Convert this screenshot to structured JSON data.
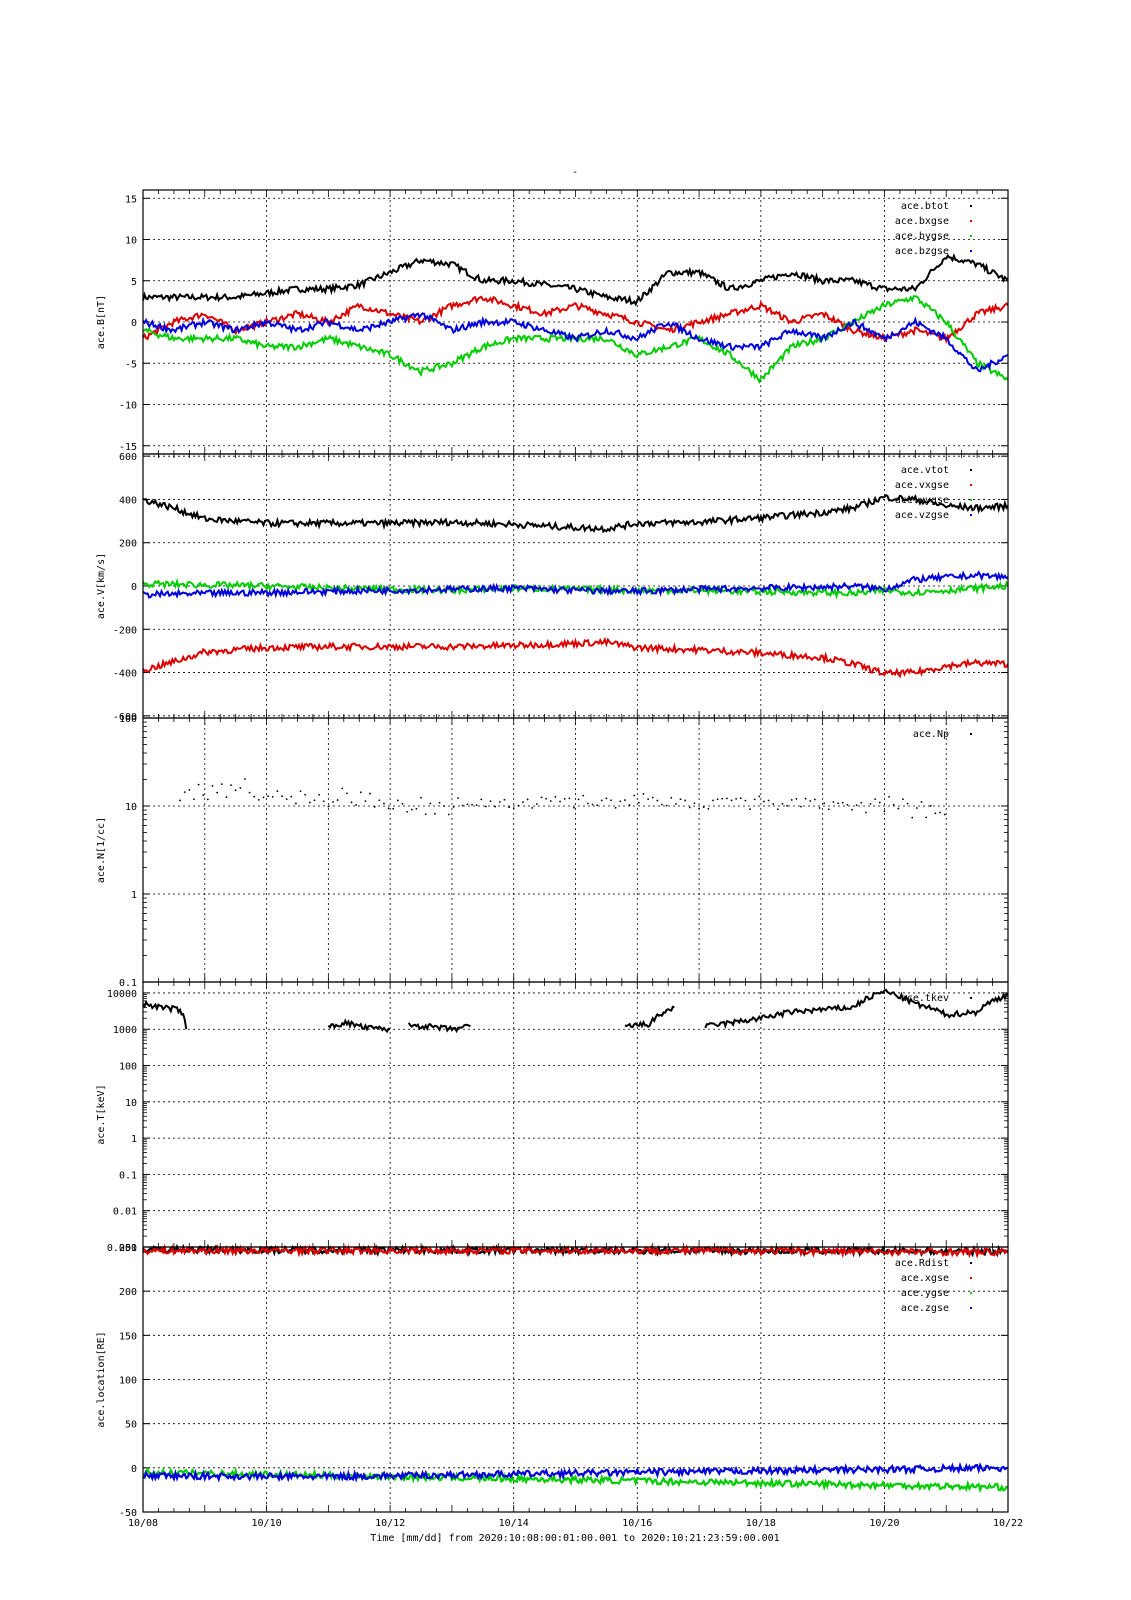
{
  "title": "-",
  "footer": {
    "time_label": "Time [mm/dd]  from 2020:10:08:00:01:00.001  to  2020:10:21:23:59:00.001"
  },
  "chart_data": [
    {
      "type": "line",
      "ylabel": "ace.B[nT]",
      "yscale": "linear",
      "ylim": [
        -16,
        16
      ],
      "yticks": [
        -15,
        -10,
        -5,
        0,
        5,
        10,
        15
      ],
      "xlim": [
        0,
        14
      ],
      "xtick_days": [
        0,
        2,
        4,
        6,
        8,
        10,
        12,
        14
      ],
      "xtick_labels": [
        "10/08",
        "10/10",
        "10/12",
        "10/14",
        "10/16",
        "10/18",
        "10/20",
        "10/22"
      ],
      "legend_position": "top-right",
      "series": [
        {
          "name": "ace.btot",
          "color": "#000000",
          "x": [
            0,
            0.5,
            1,
            1.5,
            2,
            2.5,
            3,
            3.5,
            4,
            4.5,
            5,
            5.5,
            6,
            6.5,
            7,
            7.5,
            8,
            8.5,
            9,
            9.5,
            10,
            10.5,
            11,
            11.5,
            12,
            12.5,
            13,
            13.5,
            14
          ],
          "values": [
            3,
            3,
            3,
            3,
            3.5,
            4,
            4,
            4.5,
            6,
            7.5,
            7,
            5,
            5,
            4.5,
            4,
            3,
            2.5,
            6,
            6,
            4,
            5,
            6,
            5,
            5,
            4,
            4,
            8,
            7,
            5
          ]
        },
        {
          "name": "ace.bxgse",
          "color": "#dd0000",
          "x": [
            0,
            0.5,
            1,
            1.5,
            2,
            2.5,
            3,
            3.5,
            4,
            4.5,
            5,
            5.5,
            6,
            6.5,
            7,
            7.5,
            8,
            8.5,
            9,
            9.5,
            10,
            10.5,
            11,
            11.5,
            12,
            12.5,
            13,
            13.5,
            14
          ],
          "values": [
            -2,
            0,
            1,
            -1,
            0,
            1,
            0,
            2,
            1,
            0,
            2,
            3,
            2,
            1,
            2,
            1,
            0,
            -1,
            0,
            1,
            2,
            0,
            1,
            -1,
            -2,
            -1,
            -2,
            1,
            2
          ]
        },
        {
          "name": "ace.bygse",
          "color": "#00cc00",
          "x": [
            0,
            0.5,
            1,
            1.5,
            2,
            2.5,
            3,
            3.5,
            4,
            4.5,
            5,
            5.5,
            6,
            6.5,
            7,
            7.5,
            8,
            8.5,
            9,
            9.5,
            10,
            10.5,
            11,
            11.5,
            12,
            12.5,
            13,
            13.5,
            14
          ],
          "values": [
            -1,
            -2,
            -2,
            -2,
            -3,
            -3,
            -2,
            -3,
            -4,
            -6,
            -5,
            -3,
            -2,
            -2,
            -2,
            -2,
            -4,
            -3,
            -2,
            -4,
            -7,
            -3,
            -2,
            0,
            2,
            3,
            0,
            -5,
            -7
          ]
        },
        {
          "name": "ace.bzgse",
          "color": "#0000dd",
          "x": [
            0,
            0.5,
            1,
            1.5,
            2,
            2.5,
            3,
            3.5,
            4,
            4.5,
            5,
            5.5,
            6,
            6.5,
            7,
            7.5,
            8,
            8.5,
            9,
            9.5,
            10,
            10.5,
            11,
            11.5,
            12,
            12.5,
            13,
            13.5,
            14
          ],
          "values": [
            0,
            -1,
            0,
            -1,
            0,
            -1,
            0,
            -1,
            0,
            1,
            -1,
            0,
            0,
            -1,
            -2,
            -1,
            -2,
            0,
            -2,
            -3,
            -3,
            -1,
            -2,
            0,
            -2,
            0,
            -2,
            -6,
            -4
          ]
        }
      ]
    },
    {
      "type": "line",
      "ylabel": "ace.V[km/s]",
      "yscale": "linear",
      "ylim": [
        -610,
        610
      ],
      "yticks": [
        -600,
        -400,
        -200,
        0,
        200,
        400,
        600
      ],
      "xlim": [
        0,
        14
      ],
      "xtick_days": [
        0,
        2,
        4,
        6,
        8,
        10,
        12,
        14
      ],
      "legend_position": "top-right",
      "series": [
        {
          "name": "ace.vtot",
          "color": "#000000",
          "x": [
            0,
            0.5,
            1,
            2,
            3,
            4,
            5,
            6,
            7,
            7.5,
            8,
            9,
            10,
            11,
            11.5,
            12,
            12.5,
            13,
            13.5,
            14
          ],
          "values": [
            400,
            360,
            310,
            290,
            290,
            290,
            295,
            285,
            270,
            265,
            290,
            295,
            315,
            340,
            360,
            410,
            400,
            370,
            360,
            370
          ]
        },
        {
          "name": "ace.vxgse",
          "color": "#dd0000",
          "x": [
            0,
            0.5,
            1,
            2,
            3,
            4,
            5,
            6,
            7,
            7.5,
            8,
            9,
            10,
            11,
            11.5,
            12,
            12.5,
            13,
            13.5,
            14
          ],
          "values": [
            -390,
            -350,
            -305,
            -285,
            -280,
            -280,
            -280,
            -275,
            -265,
            -260,
            -285,
            -295,
            -310,
            -330,
            -360,
            -405,
            -400,
            -370,
            -355,
            -360
          ]
        },
        {
          "name": "ace.vygse",
          "color": "#00cc00",
          "x": [
            0,
            1,
            2,
            3,
            4,
            5,
            6,
            7,
            8,
            9,
            10,
            11,
            11.5,
            12,
            12.5,
            13,
            13.5,
            14
          ],
          "values": [
            10,
            5,
            0,
            -10,
            -15,
            -20,
            -10,
            -15,
            -20,
            -20,
            -25,
            -30,
            -35,
            -20,
            -30,
            -20,
            -10,
            0
          ]
        },
        {
          "name": "ace.vzgse",
          "color": "#0000dd",
          "x": [
            0,
            1,
            2,
            3,
            4,
            5,
            6,
            7,
            8,
            9,
            10,
            11,
            11.5,
            12,
            12.5,
            13,
            13.5,
            14
          ],
          "values": [
            -40,
            -35,
            -30,
            -25,
            -20,
            -15,
            -10,
            -20,
            -25,
            -15,
            -10,
            -5,
            0,
            -15,
            30,
            40,
            50,
            40
          ]
        }
      ]
    },
    {
      "type": "scatter",
      "ylabel": "ace.N[1/cc]",
      "yscale": "log",
      "ylim": [
        0.1,
        100
      ],
      "yticks": [
        0.1,
        1,
        10,
        100
      ],
      "ytick_labels": [
        "0.1",
        "1",
        "10",
        "100"
      ],
      "xlim": [
        0,
        14
      ],
      "xtick_days": [
        0,
        2,
        4,
        6,
        8,
        10,
        12,
        14
      ],
      "legend_position": "top-right",
      "series": [
        {
          "name": "ace.Np",
          "color": "#000000",
          "x": [
            0.6,
            0.8,
            1,
            1.2,
            1.5,
            1.8,
            2,
            2.3,
            2.6,
            3,
            3.2,
            3.5,
            4,
            4.5,
            5,
            5.5,
            6,
            6.5,
            7,
            7.5,
            8,
            8.5,
            9,
            9.5,
            10,
            10.5,
            11,
            11.5,
            12,
            12.5,
            13
          ],
          "values": [
            15,
            14,
            15,
            16,
            17,
            15,
            14,
            13,
            12,
            12,
            13,
            12,
            11,
            10,
            10,
            11,
            11,
            12,
            11,
            11,
            12,
            11,
            11,
            12,
            11,
            11,
            10,
            10,
            10,
            9.5,
            9
          ]
        }
      ]
    },
    {
      "type": "line",
      "ylabel": "ace.T[keV]",
      "yscale": "log",
      "ylim": [
        0.001,
        20000
      ],
      "yticks": [
        0.001,
        0.01,
        0.1,
        1,
        10,
        100,
        1000,
        10000
      ],
      "ytick_labels": [
        "0.001",
        "0.01",
        "0.1",
        "1",
        "10",
        "100",
        "1000",
        "10000"
      ],
      "xlim": [
        0,
        14
      ],
      "xtick_days": [
        0,
        2,
        4,
        6,
        8,
        10,
        12,
        14
      ],
      "legend_position": "top-right",
      "series": [
        {
          "name": "ace.tkev",
          "color": "#000000",
          "segments": [
            {
              "x": [
                0,
                0.3,
                0.6,
                0.7
              ],
              "values": [
                5000,
                4000,
                3500,
                1000
              ]
            },
            {
              "x": [
                3,
                3.3,
                3.6,
                4
              ],
              "values": [
                1200,
                1500,
                1100,
                1000
              ]
            },
            {
              "x": [
                4.3,
                4.6,
                5,
                5.3
              ],
              "values": [
                1300,
                1200,
                1000,
                1200
              ]
            },
            {
              "x": [
                7.8,
                8.2,
                8.6
              ],
              "values": [
                1200,
                1400,
                4000
              ]
            },
            {
              "x": [
                9.1,
                9.5,
                10,
                10.5,
                11,
                11.5,
                12,
                12.5,
                13,
                13.5,
                14
              ],
              "values": [
                1200,
                1500,
                2000,
                3000,
                3500,
                4000,
                11000,
                5000,
                2500,
                3000,
                9000
              ]
            }
          ]
        }
      ]
    },
    {
      "type": "line",
      "ylabel": "ace.location[RE]",
      "yscale": "linear",
      "ylim": [
        -50,
        250
      ],
      "yticks": [
        -50,
        0,
        50,
        100,
        150,
        200,
        250
      ],
      "ytick_labels": [
        "-50",
        "0",
        "50",
        "100",
        "150",
        "200",
        "250"
      ],
      "xlim": [
        0,
        14
      ],
      "xtick_days": [
        0,
        2,
        4,
        6,
        8,
        10,
        12,
        14
      ],
      "legend_position": "top-right",
      "series": [
        {
          "name": "ace.Rdist",
          "color": "#000000",
          "x": [
            0,
            14
          ],
          "values": [
            247,
            245
          ]
        },
        {
          "name": "ace.xgse",
          "color": "#dd0000",
          "x": [
            0,
            7,
            9,
            14
          ],
          "values": [
            246,
            246,
            246,
            244
          ]
        },
        {
          "name": "ace.ygse",
          "color": "#00cc00",
          "x": [
            0,
            14
          ],
          "values": [
            -5,
            -22
          ]
        },
        {
          "name": "ace.zgse",
          "color": "#0000dd",
          "x": [
            0,
            3,
            7,
            14
          ],
          "values": [
            -9,
            -10,
            -6,
            0
          ]
        }
      ]
    }
  ]
}
